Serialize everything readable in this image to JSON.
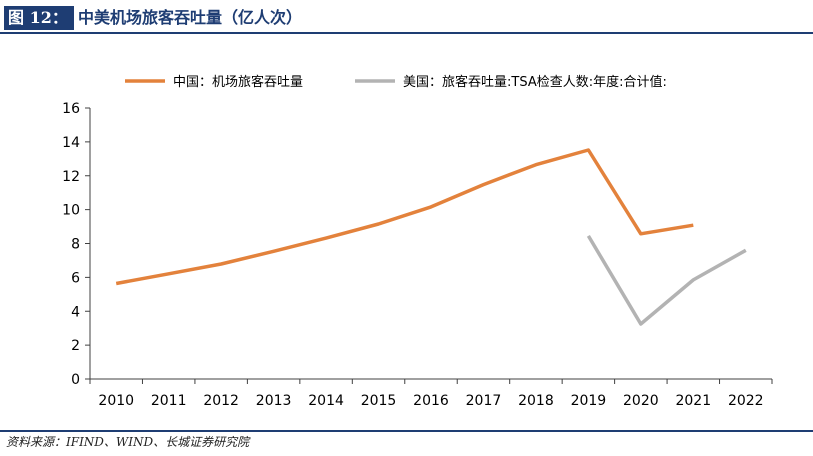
{
  "header": {
    "figure_label": "图 12：",
    "title": "中美机场旅客吞吐量（亿人次）"
  },
  "footer": {
    "source": "资料来源：IFIND、WIND、长城证券研究院"
  },
  "colors": {
    "china": "#e3823c",
    "usa": "#b3b3b3",
    "axis": "#404040",
    "brand": "#1e3d73"
  },
  "chart_data": {
    "type": "line",
    "title": "中美机场旅客吞吐量（亿人次）",
    "categories": [
      "2010",
      "2011",
      "2012",
      "2013",
      "2014",
      "2015",
      "2016",
      "2017",
      "2018",
      "2019",
      "2020",
      "2021",
      "2022"
    ],
    "ylim": [
      0,
      16
    ],
    "yticks": [
      0,
      2,
      4,
      6,
      8,
      10,
      12,
      14,
      16
    ],
    "xlabel": "",
    "ylabel": "",
    "grid": false,
    "legend_position": "top",
    "series": [
      {
        "name": "中国：机场旅客吞吐量",
        "color": "#e3823c",
        "values": [
          5.64,
          6.21,
          6.79,
          7.54,
          8.32,
          9.15,
          10.16,
          11.48,
          12.65,
          13.52,
          8.57,
          9.08,
          null
        ]
      },
      {
        "name": "美国：旅客吞吐量:TSA检查人数:年度:合计值:",
        "color": "#b3b3b3",
        "values": [
          null,
          null,
          null,
          null,
          null,
          null,
          null,
          null,
          null,
          8.45,
          3.25,
          5.85,
          7.6
        ]
      }
    ]
  }
}
